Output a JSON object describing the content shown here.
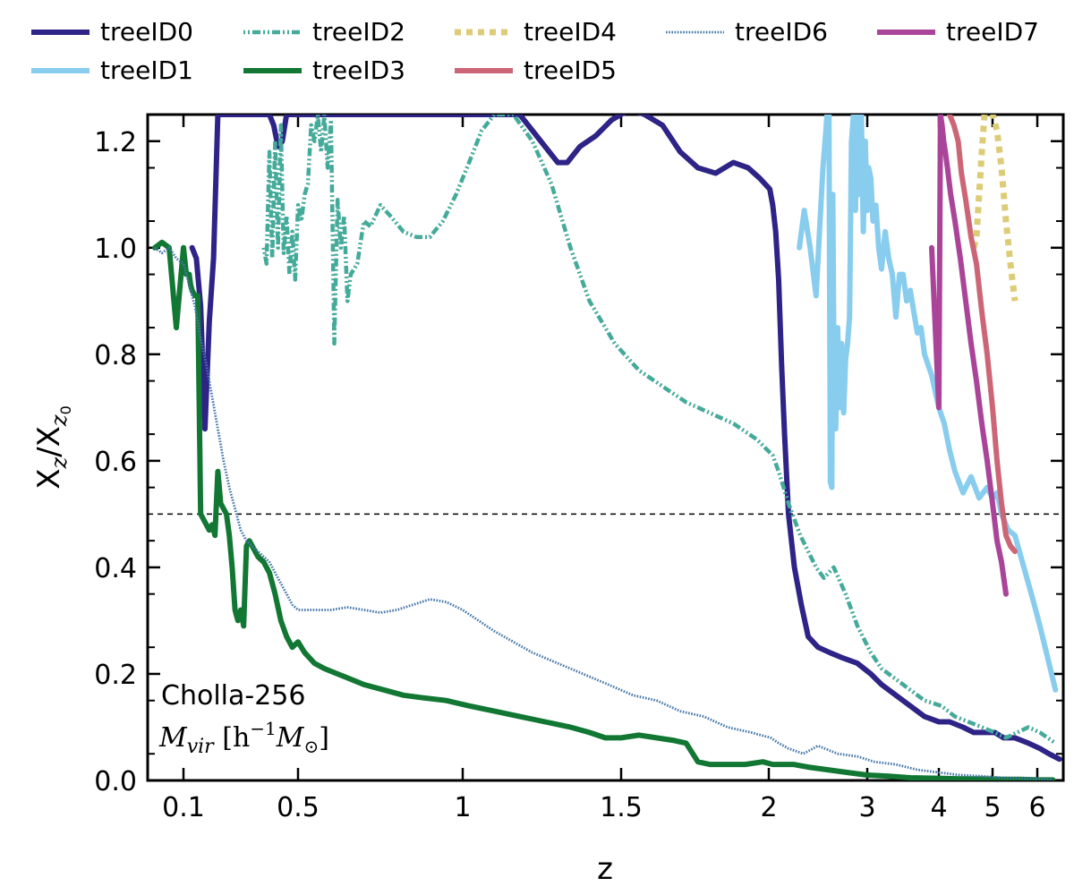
{
  "chart_data": {
    "type": "line",
    "xlabel": "z",
    "ylabel_main": "X",
    "ylabel_sub1": "z",
    "ylabel_mid": "/X",
    "ylabel_sub2": "z",
    "ylabel_sub3": "0",
    "xlim": [
      0.05,
      7.0
    ],
    "ylim": [
      0.0,
      1.25
    ],
    "x_ticks": [
      {
        "v": 0.1,
        "label": "0.1"
      },
      {
        "v": 0.5,
        "label": "0.5"
      },
      {
        "v": 1,
        "label": "1"
      },
      {
        "v": 1.5,
        "label": "1.5"
      },
      {
        "v": 2,
        "label": "2"
      },
      {
        "v": 3,
        "label": "3"
      },
      {
        "v": 4,
        "label": "4"
      },
      {
        "v": 5,
        "label": "5"
      },
      {
        "v": 6,
        "label": "6"
      }
    ],
    "y_ticks": [
      {
        "v": 0.0,
        "label": "0.0"
      },
      {
        "v": 0.2,
        "label": "0.2"
      },
      {
        "v": 0.4,
        "label": "0.4"
      },
      {
        "v": 0.6,
        "label": "0.6"
      },
      {
        "v": 0.8,
        "label": "0.8"
      },
      {
        "v": 1.0,
        "label": "1.0"
      },
      {
        "v": 1.2,
        "label": "1.2"
      }
    ],
    "reference_line": {
      "y": 0.5,
      "style": "dashed",
      "color": "#000000"
    },
    "annotation": {
      "line1": "Cholla-256",
      "line2_math": "M",
      "line2_sub": "vir",
      "line2_rest": " [h",
      "line2_sup": "−1",
      "line2_end": "M",
      "line2_sub2": "⊙",
      "line2_close": "]"
    },
    "legend_placement": "top (above plot, 5 columns)",
    "series": [
      {
        "name": "treeID0",
        "color": "#2e2386",
        "style": "solid",
        "x": [
          0.13,
          0.145,
          0.16,
          0.175,
          0.19,
          0.205,
          0.22,
          0.24,
          0.4,
          0.415,
          0.43,
          0.445,
          0.46,
          1.18,
          1.22,
          1.26,
          1.3,
          1.33,
          1.37,
          1.42,
          1.47,
          1.53,
          1.58,
          1.64,
          1.7,
          1.76,
          1.82,
          1.88,
          1.93,
          1.97,
          2.01,
          2.04,
          2.07,
          2.1,
          2.13,
          2.16,
          2.2,
          2.26,
          2.33,
          2.4,
          2.5,
          2.62,
          2.75,
          2.9,
          3.05,
          3.2,
          3.4,
          3.6,
          3.8,
          4.0,
          4.2,
          4.45,
          4.65,
          4.85,
          5.05,
          5.25,
          5.5,
          5.8,
          6.1,
          6.45,
          6.85
        ],
        "y": [
          1.0,
          0.98,
          0.89,
          0.66,
          0.86,
          0.98,
          1.25,
          1.25,
          1.25,
          1.23,
          1.19,
          1.2,
          1.25,
          1.25,
          1.22,
          1.19,
          1.16,
          1.16,
          1.19,
          1.21,
          1.24,
          1.26,
          1.25,
          1.23,
          1.18,
          1.15,
          1.14,
          1.16,
          1.15,
          1.13,
          1.11,
          1.08,
          1.03,
          0.94,
          0.78,
          0.65,
          0.5,
          0.4,
          0.33,
          0.27,
          0.25,
          0.24,
          0.23,
          0.22,
          0.2,
          0.18,
          0.16,
          0.14,
          0.12,
          0.11,
          0.11,
          0.1,
          0.09,
          0.09,
          0.09,
          0.08,
          0.08,
          0.07,
          0.06,
          0.05,
          0.04
        ]
      },
      {
        "name": "treeID1",
        "color": "#88ccee",
        "style": "solid",
        "x": [
          2.31,
          2.36,
          2.42,
          2.48,
          2.55,
          2.58,
          2.61,
          2.625,
          2.64,
          2.65,
          2.66,
          2.665,
          2.67,
          2.68,
          2.7,
          2.72,
          2.74,
          2.76,
          2.78,
          2.8,
          2.82,
          2.84,
          2.86,
          2.88,
          2.9,
          2.92,
          2.94,
          2.96,
          2.98,
          3.0,
          3.02,
          3.05,
          3.08,
          3.12,
          3.16,
          3.2,
          3.25,
          3.3,
          3.35,
          3.4,
          3.45,
          3.5,
          3.55,
          3.6,
          3.65,
          3.7,
          3.75,
          3.8,
          3.85,
          3.9,
          3.95,
          4.0,
          4.1,
          4.2,
          4.3,
          4.45,
          4.6,
          4.75,
          4.9,
          5.0,
          5.1,
          5.2,
          5.35,
          5.5,
          5.7,
          5.9,
          6.1,
          6.3,
          6.5,
          6.7
        ],
        "y": [
          1.0,
          1.07,
          1.0,
          0.91,
          1.15,
          1.22,
          1.3,
          0.56,
          0.55,
          1.1,
          0.82,
          0.75,
          0.81,
          0.66,
          0.85,
          0.7,
          0.82,
          0.69,
          0.79,
          0.82,
          0.87,
          1.2,
          1.25,
          1.07,
          1.25,
          1.1,
          1.25,
          1.03,
          1.2,
          1.07,
          1.15,
          1.13,
          1.05,
          1.08,
          1.0,
          0.96,
          1.03,
          0.98,
          0.95,
          0.87,
          0.95,
          0.95,
          0.9,
          0.92,
          0.88,
          0.84,
          0.85,
          0.8,
          0.78,
          0.76,
          0.73,
          0.7,
          0.67,
          0.62,
          0.58,
          0.54,
          0.57,
          0.53,
          0.55,
          0.53,
          0.54,
          0.5,
          0.47,
          0.46,
          0.4,
          0.34,
          0.29,
          0.25,
          0.21,
          0.17
        ]
      },
      {
        "name": "treeID2",
        "color": "#44aa99",
        "style": "dashdot",
        "x": [
          0.38,
          0.39,
          0.4,
          0.41,
          0.42,
          0.43,
          0.44,
          0.45,
          0.46,
          0.47,
          0.48,
          0.49,
          0.5,
          0.51,
          0.52,
          0.53,
          0.54,
          0.55,
          0.56,
          0.57,
          0.58,
          0.59,
          0.6,
          0.61,
          0.62,
          0.63,
          0.64,
          0.65,
          0.66,
          0.68,
          0.7,
          0.72,
          0.75,
          0.78,
          0.82,
          0.86,
          0.9,
          0.94,
          0.98,
          1.02,
          1.06,
          1.1,
          1.16,
          1.22,
          1.28,
          1.34,
          1.4,
          1.48,
          1.56,
          1.64,
          1.72,
          1.8,
          1.88,
          1.96,
          2.04,
          2.1,
          2.15,
          2.2,
          2.26,
          2.32,
          2.4,
          2.48,
          2.56,
          2.66,
          2.78,
          2.9,
          3.05,
          3.2,
          3.4,
          3.6,
          3.8,
          4.05,
          4.3,
          4.55,
          4.8,
          5.05,
          5.3,
          5.55,
          5.8,
          6.1,
          6.4,
          6.7
        ],
        "y": [
          1.0,
          0.97,
          1.18,
          0.98,
          1.2,
          1.0,
          1.23,
          0.99,
          1.06,
          0.95,
          1.03,
          0.94,
          1.08,
          1.05,
          1.1,
          1.12,
          1.23,
          1.2,
          1.25,
          1.18,
          1.25,
          1.15,
          1.24,
          0.82,
          1.09,
          1.0,
          1.06,
          0.9,
          0.95,
          0.97,
          1.05,
          1.04,
          1.08,
          1.06,
          1.03,
          1.02,
          1.02,
          1.05,
          1.1,
          1.16,
          1.22,
          1.25,
          1.25,
          1.2,
          1.12,
          1.0,
          0.9,
          0.82,
          0.77,
          0.74,
          0.71,
          0.69,
          0.67,
          0.64,
          0.61,
          0.58,
          0.55,
          0.52,
          0.49,
          0.46,
          0.43,
          0.4,
          0.38,
          0.4,
          0.35,
          0.29,
          0.24,
          0.21,
          0.19,
          0.17,
          0.15,
          0.14,
          0.12,
          0.11,
          0.1,
          0.09,
          0.08,
          0.09,
          0.1,
          0.09,
          0.08,
          0.07
        ]
      },
      {
        "name": "treeID3",
        "color": "#117733",
        "style": "solid",
        "x": [
          0.06,
          0.07,
          0.08,
          0.09,
          0.1,
          0.11,
          0.12,
          0.125,
          0.13,
          0.14,
          0.15,
          0.16,
          0.17,
          0.18,
          0.19,
          0.2,
          0.21,
          0.22,
          0.23,
          0.24,
          0.25,
          0.26,
          0.27,
          0.28,
          0.29,
          0.3,
          0.31,
          0.32,
          0.33,
          0.34,
          0.36,
          0.38,
          0.4,
          0.42,
          0.44,
          0.46,
          0.48,
          0.5,
          0.52,
          0.55,
          0.58,
          0.62,
          0.66,
          0.7,
          0.76,
          0.82,
          0.88,
          0.95,
          1.02,
          1.1,
          1.18,
          1.26,
          1.34,
          1.4,
          1.45,
          1.5,
          1.56,
          1.62,
          1.68,
          1.72,
          1.76,
          1.8,
          1.86,
          1.92,
          1.98,
          2.04,
          2.1,
          2.16,
          2.25,
          2.4,
          2.6,
          2.8,
          3.0,
          3.3,
          3.6,
          4.0,
          4.4,
          4.8,
          5.2,
          5.6,
          6.1,
          6.6
        ],
        "y": [
          1.0,
          1.01,
          1.0,
          0.85,
          1.0,
          0.95,
          0.95,
          0.93,
          0.92,
          0.91,
          0.91,
          0.5,
          0.49,
          0.48,
          0.47,
          0.48,
          0.46,
          0.58,
          0.52,
          0.51,
          0.5,
          0.46,
          0.4,
          0.32,
          0.3,
          0.32,
          0.29,
          0.44,
          0.45,
          0.44,
          0.42,
          0.41,
          0.39,
          0.35,
          0.3,
          0.27,
          0.25,
          0.26,
          0.24,
          0.22,
          0.21,
          0.2,
          0.19,
          0.18,
          0.17,
          0.16,
          0.155,
          0.15,
          0.14,
          0.13,
          0.12,
          0.11,
          0.1,
          0.09,
          0.08,
          0.08,
          0.085,
          0.08,
          0.075,
          0.07,
          0.035,
          0.03,
          0.03,
          0.03,
          0.035,
          0.03,
          0.03,
          0.03,
          0.03,
          0.025,
          0.02,
          0.015,
          0.01,
          0.008,
          0.005,
          0.004,
          0.003,
          0.003,
          0.002,
          0.002,
          0.001,
          0.001
        ]
      },
      {
        "name": "treeID4",
        "color": "#ddcc77",
        "style": "dotted",
        "x": [
          4.65,
          4.7,
          4.75,
          4.8,
          4.85,
          4.9,
          4.95,
          5.0,
          5.1,
          5.2,
          5.3,
          5.4,
          5.5
        ],
        "y": [
          1.0,
          1.02,
          1.1,
          1.18,
          1.25,
          1.25,
          1.25,
          1.25,
          1.22,
          1.15,
          1.05,
          0.97,
          0.9
        ]
      },
      {
        "name": "treeID5",
        "color": "#cc6677",
        "style": "solid",
        "x": [
          4.2,
          4.28,
          4.36,
          4.42,
          4.5,
          4.6,
          4.7,
          4.8,
          4.9,
          5.0,
          5.1,
          5.2,
          5.3,
          5.4,
          5.5
        ],
        "y": [
          1.25,
          1.23,
          1.2,
          1.14,
          1.09,
          1.02,
          0.97,
          0.88,
          0.8,
          0.7,
          0.6,
          0.52,
          0.46,
          0.44,
          0.43
        ]
      },
      {
        "name": "treeID7",
        "color": "#aa4499",
        "style": "solid",
        "x": [
          3.9,
          3.95,
          4.0,
          4.03,
          4.06,
          4.09,
          4.12,
          4.16,
          4.22,
          4.3,
          4.4,
          4.5,
          4.6,
          4.7,
          4.8,
          4.9,
          5.0,
          5.1,
          5.2,
          5.3
        ],
        "y": [
          1.0,
          0.85,
          0.7,
          1.25,
          1.23,
          1.2,
          1.18,
          1.15,
          1.1,
          1.05,
          0.98,
          0.9,
          0.82,
          0.75,
          0.67,
          0.6,
          0.52,
          0.45,
          0.41,
          0.35
        ]
      },
      {
        "name": "treeID6",
        "color": "#4477aa",
        "style": "densely-dotted",
        "x": [
          0.06,
          0.07,
          0.08,
          0.09,
          0.1,
          0.11,
          0.12,
          0.13,
          0.14,
          0.15,
          0.16,
          0.18,
          0.2,
          0.22,
          0.24,
          0.26,
          0.28,
          0.3,
          0.32,
          0.34,
          0.36,
          0.38,
          0.4,
          0.42,
          0.44,
          0.46,
          0.48,
          0.5,
          0.52,
          0.55,
          0.6,
          0.65,
          0.7,
          0.75,
          0.8,
          0.85,
          0.9,
          0.95,
          1.0,
          1.05,
          1.1,
          1.16,
          1.22,
          1.3,
          1.38,
          1.46,
          1.54,
          1.62,
          1.7,
          1.78,
          1.86,
          1.94,
          2.02,
          2.1,
          2.2,
          2.35,
          2.5,
          2.7,
          2.9,
          3.1,
          3.4,
          3.7,
          4.0,
          4.4,
          4.8,
          5.2,
          5.6,
          6.1,
          6.6
        ],
        "y": [
          1.0,
          0.99,
          1.0,
          0.98,
          0.97,
          0.95,
          0.93,
          0.91,
          0.89,
          0.86,
          0.83,
          0.78,
          0.72,
          0.66,
          0.6,
          0.55,
          0.51,
          0.47,
          0.45,
          0.44,
          0.43,
          0.42,
          0.41,
          0.39,
          0.37,
          0.35,
          0.33,
          0.32,
          0.32,
          0.32,
          0.32,
          0.325,
          0.32,
          0.315,
          0.32,
          0.33,
          0.34,
          0.335,
          0.32,
          0.3,
          0.28,
          0.26,
          0.24,
          0.22,
          0.2,
          0.18,
          0.16,
          0.15,
          0.13,
          0.12,
          0.1,
          0.09,
          0.08,
          0.07,
          0.06,
          0.05,
          0.065,
          0.05,
          0.045,
          0.035,
          0.03,
          0.02,
          0.015,
          0.01,
          0.008,
          0.005,
          0.004,
          0.003,
          0.002
        ]
      }
    ],
    "legend_order": [
      "treeID0",
      "treeID2",
      "treeID4",
      "treeID6",
      "treeID7",
      "treeID1",
      "treeID3",
      "treeID5"
    ]
  }
}
